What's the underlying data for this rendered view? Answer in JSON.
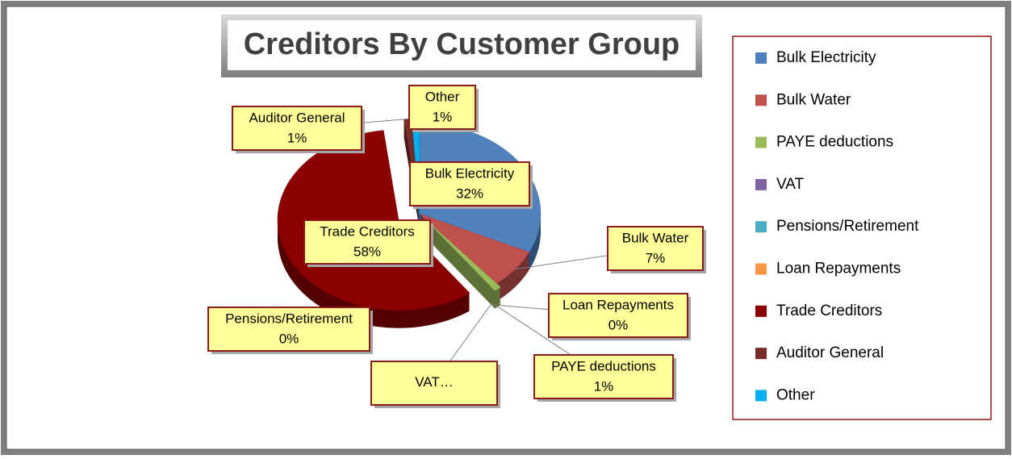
{
  "chart_data": {
    "type": "pie",
    "title": "Creditors By Customer Group",
    "categories": [
      "Bulk Electricity",
      "Bulk Water",
      "PAYE deductions",
      "VAT",
      "Pensions/Retirement",
      "Loan Repayments",
      "Trade Creditors",
      "Auditor General",
      "Other"
    ],
    "values": [
      32,
      7,
      1,
      0,
      0,
      0,
      58,
      1,
      1
    ],
    "value_labels": [
      "32%",
      "7%",
      "1%",
      "…",
      "0%",
      "0%",
      "58%",
      "1%",
      "1%"
    ],
    "colors": [
      "#4f81bd",
      "#c0504d",
      "#9bbb59",
      "#8064a2",
      "#4bacc6",
      "#f79646",
      "#8b0000",
      "#772c2a",
      "#00b0f0"
    ],
    "legend": "right"
  }
}
